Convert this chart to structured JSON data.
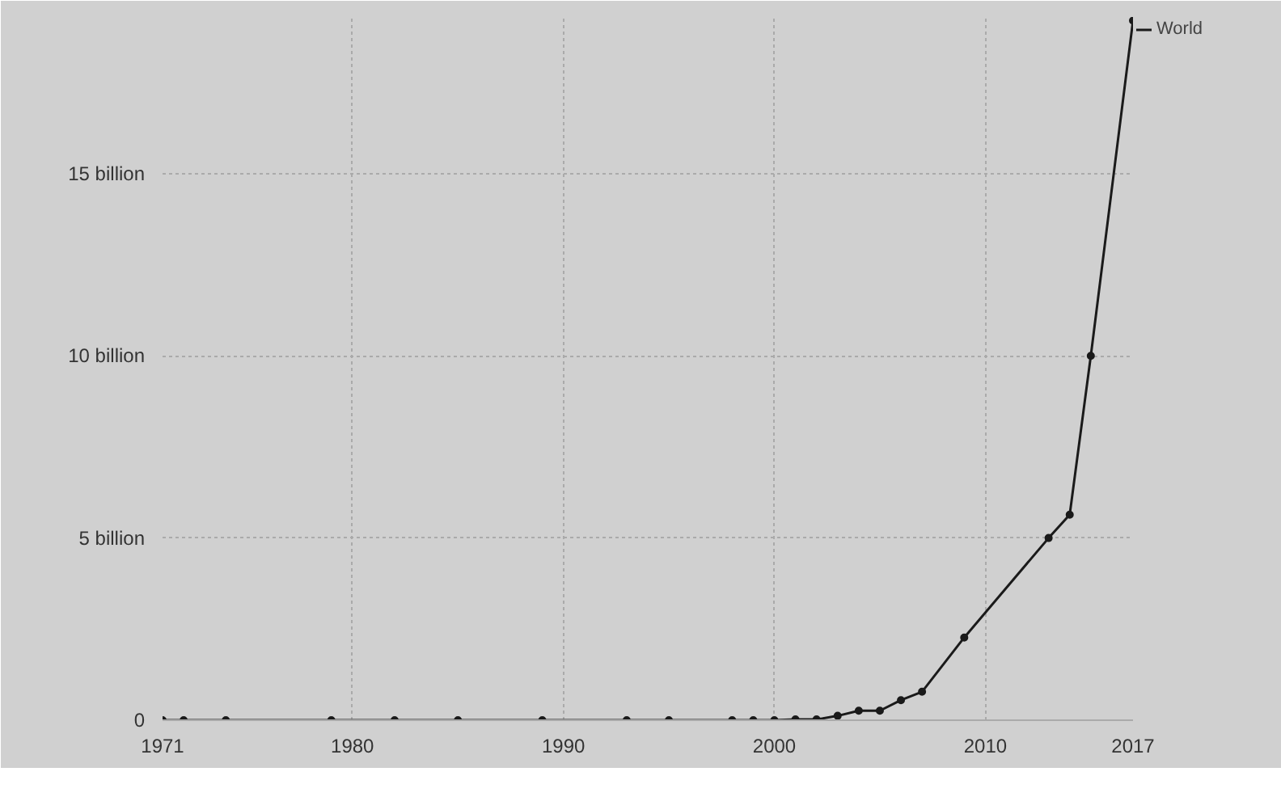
{
  "chart_data": {
    "type": "line",
    "x": [
      1971,
      1972,
      1974,
      1979,
      1982,
      1985,
      1989,
      1993,
      1995,
      1998,
      1999,
      2000,
      2001,
      2002,
      2003,
      2004,
      2005,
      2006,
      2007,
      2009,
      2013,
      2014,
      2015,
      2017
    ],
    "series": [
      {
        "name": "World",
        "color": "#1a1a1a",
        "values": [
          0,
          0,
          0,
          0,
          0,
          0,
          0,
          0,
          0,
          0,
          0,
          0,
          20000000,
          20000000,
          120000000,
          260000000,
          260000000,
          550000000,
          780000000,
          2270000000,
          5000000000,
          5640000000,
          10000000000,
          19200000000
        ]
      }
    ],
    "xlim": [
      1971,
      2017
    ],
    "xticks": [
      1971,
      1980,
      1990,
      2000,
      2010,
      2017
    ],
    "ylim": [
      0,
      19300000000
    ],
    "yticks": [
      {
        "value": 0,
        "label": "0"
      },
      {
        "value": 5000000000,
        "label": "5 billion"
      },
      {
        "value": 10000000000,
        "label": "10 billion"
      },
      {
        "value": 15000000000,
        "label": "15 billion"
      }
    ],
    "grid": true,
    "legend": "top right",
    "marker": "circle",
    "line_style": "solid"
  }
}
